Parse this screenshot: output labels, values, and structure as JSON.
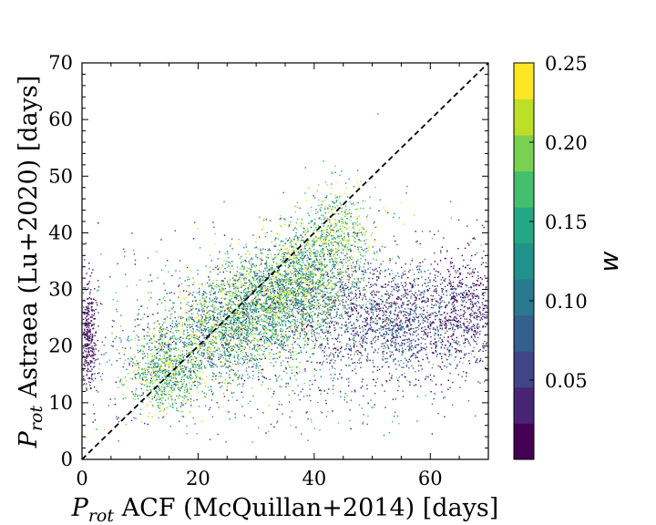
{
  "chart_data": {
    "type": "scatter",
    "title": "",
    "xlabel": {
      "main": "P",
      "sub": "rot",
      "rest": " ACF (McQuillan+2014) [days]"
    },
    "ylabel": {
      "main": "P",
      "sub": "rot",
      "rest": " Astraea (Lu+2020) [days]"
    },
    "xlim": [
      0,
      70
    ],
    "ylim": [
      0,
      70
    ],
    "x_ticks": [
      0,
      20,
      40,
      60
    ],
    "y_ticks": [
      0,
      10,
      20,
      30,
      40,
      50,
      60,
      70
    ],
    "x_tick_labels": [
      "0",
      "20",
      "40",
      "60"
    ],
    "y_tick_labels": [
      "0",
      "10",
      "20",
      "30",
      "40",
      "50",
      "60",
      "70"
    ],
    "reference_line": {
      "style": "dashed",
      "color": "#000000",
      "from": [
        0,
        0
      ],
      "to": [
        70,
        70
      ]
    },
    "point_clusters": [
      {
        "center": [
          28,
          26
        ],
        "spread": [
          9,
          5
        ],
        "weight": 0.35,
        "w_range": [
          0.05,
          0.25
        ]
      },
      {
        "center": [
          38,
          31
        ],
        "spread": [
          5,
          6
        ],
        "weight": 0.12,
        "w_range": [
          0.08,
          0.25
        ]
      },
      {
        "center": [
          15,
          15
        ],
        "spread": [
          3,
          3
        ],
        "weight": 0.06,
        "w_range": [
          0.1,
          0.25
        ]
      },
      {
        "center": [
          55,
          25
        ],
        "spread": [
          9,
          5
        ],
        "weight": 0.18,
        "w_range": [
          0.0,
          0.1
        ]
      },
      {
        "center": [
          35,
          22
        ],
        "spread": [
          20,
          8
        ],
        "weight": 0.17,
        "w_range": [
          0.0,
          0.2
        ]
      },
      {
        "center": [
          1,
          22
        ],
        "spread": [
          0.8,
          5
        ],
        "weight": 0.04,
        "w_range": [
          0.0,
          0.05
        ]
      },
      {
        "center": [
          66,
          27
        ],
        "spread": [
          3,
          5
        ],
        "weight": 0.04,
        "w_range": [
          0.0,
          0.05
        ]
      },
      {
        "center": [
          44,
          40
        ],
        "spread": [
          3,
          4
        ],
        "weight": 0.04,
        "w_range": [
          0.1,
          0.25
        ]
      }
    ],
    "outliers": [
      [
        51,
        61
      ],
      [
        38.5,
        51.5
      ],
      [
        46,
        49.5
      ],
      [
        47.5,
        51
      ],
      [
        56,
        48.2
      ],
      [
        24.5,
        45.5
      ],
      [
        63.5,
        45.5
      ],
      [
        22.5,
        7.5
      ],
      [
        19.2,
        7.3
      ]
    ],
    "colorbar": {
      "label": "w",
      "min": 0.0,
      "max": 0.25,
      "ticks": [
        0.05,
        0.1,
        0.15,
        0.2,
        0.25
      ],
      "tick_labels": [
        "0.05",
        "0.10",
        "0.15",
        "0.20",
        "0.25"
      ],
      "colors": [
        "#440154",
        "#482475",
        "#414487",
        "#355f8d",
        "#2a788e",
        "#21918c",
        "#22a884",
        "#44bf70",
        "#7ad151",
        "#bddf26",
        "#fde725"
      ]
    }
  }
}
